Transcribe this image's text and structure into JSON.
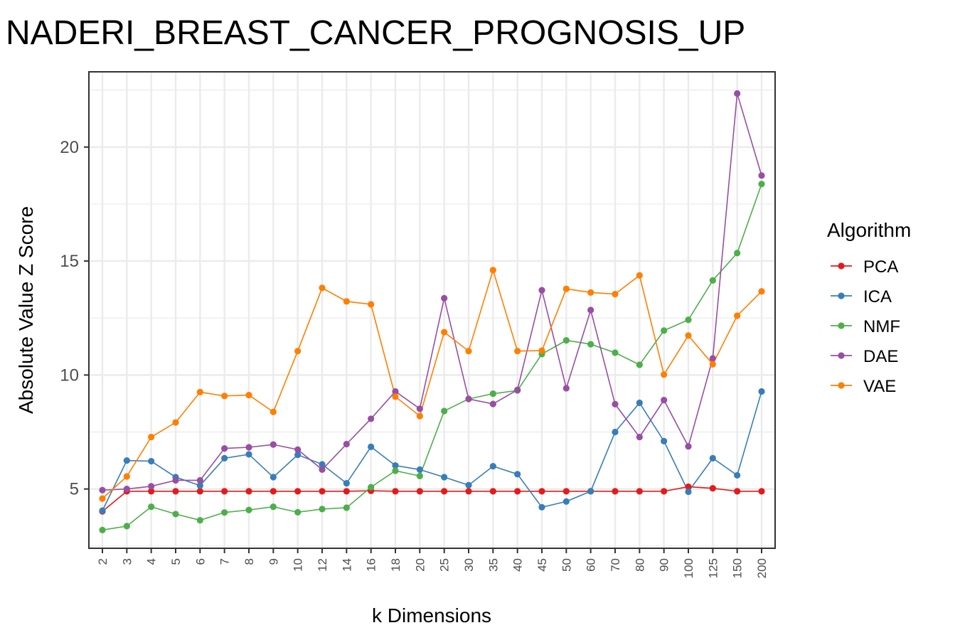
{
  "chart_data": {
    "type": "line",
    "title": "NADERI_BREAST_CANCER_PROGNOSIS_UP",
    "xlabel": "k Dimensions",
    "ylabel": "Absolute Value Z Score",
    "categories": [
      "2",
      "3",
      "4",
      "5",
      "6",
      "7",
      "8",
      "9",
      "10",
      "12",
      "14",
      "16",
      "18",
      "20",
      "25",
      "30",
      "35",
      "40",
      "45",
      "50",
      "60",
      "70",
      "80",
      "90",
      "100",
      "125",
      "150",
      "200"
    ],
    "y_ticks": [
      5,
      10,
      15,
      20
    ],
    "ylim": [
      2.4,
      23.3
    ],
    "grid": true,
    "legend": {
      "title": "Algorithm",
      "position": "right"
    },
    "series": [
      {
        "name": "PCA",
        "color": "#e41a1c",
        "values": [
          4.02,
          4.9,
          4.9,
          4.9,
          4.9,
          4.9,
          4.9,
          4.9,
          4.9,
          4.9,
          4.9,
          4.92,
          4.9,
          4.9,
          4.9,
          4.9,
          4.9,
          4.9,
          4.9,
          4.9,
          4.9,
          4.9,
          4.9,
          4.9,
          5.1,
          5.03,
          4.9,
          4.9
        ]
      },
      {
        "name": "ICA",
        "color": "#377eb8",
        "values": [
          4.05,
          6.25,
          6.22,
          5.52,
          5.15,
          6.35,
          6.52,
          5.52,
          6.5,
          6.08,
          5.25,
          6.85,
          6.03,
          5.85,
          5.52,
          5.17,
          6.0,
          5.65,
          4.2,
          4.45,
          4.9,
          7.5,
          8.78,
          7.1,
          4.88,
          6.35,
          5.6,
          9.28
        ]
      },
      {
        "name": "NMF",
        "color": "#4daf4a",
        "values": [
          3.2,
          3.37,
          4.22,
          3.9,
          3.63,
          3.97,
          4.08,
          4.22,
          3.98,
          4.12,
          4.18,
          5.08,
          5.8,
          5.57,
          8.42,
          8.95,
          9.18,
          9.32,
          10.92,
          11.52,
          11.35,
          10.98,
          10.45,
          11.95,
          12.42,
          14.15,
          15.35,
          18.38
        ]
      },
      {
        "name": "DAE",
        "color": "#984ea3",
        "values": [
          4.95,
          5.0,
          5.12,
          5.38,
          5.38,
          6.78,
          6.83,
          6.95,
          6.73,
          5.85,
          6.97,
          8.08,
          9.28,
          8.52,
          13.37,
          8.95,
          8.73,
          9.35,
          13.72,
          9.42,
          12.85,
          8.72,
          7.28,
          8.9,
          6.87,
          10.73,
          22.35,
          18.75
        ]
      },
      {
        "name": "VAE",
        "color": "#ff7f00",
        "values": [
          4.58,
          5.55,
          7.28,
          7.92,
          9.25,
          9.08,
          9.12,
          8.38,
          11.05,
          13.82,
          13.23,
          13.1,
          9.05,
          8.2,
          11.88,
          11.05,
          14.6,
          11.05,
          11.07,
          13.78,
          13.62,
          13.55,
          14.37,
          10.02,
          11.73,
          10.47,
          12.6,
          13.67
        ]
      }
    ]
  }
}
